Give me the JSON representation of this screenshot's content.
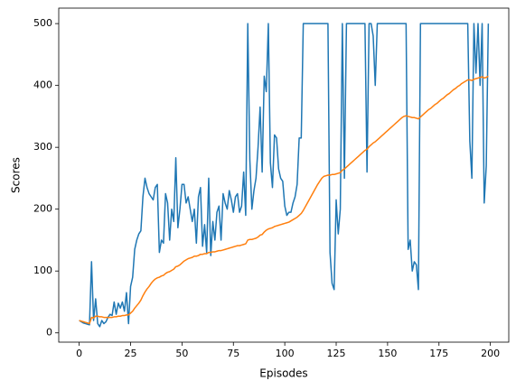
{
  "chart_data": {
    "type": "line",
    "xlabel": "Episodes",
    "ylabel": "Scores",
    "x": [
      0,
      1,
      2,
      3,
      4,
      5,
      6,
      7,
      8,
      9,
      10,
      11,
      12,
      13,
      14,
      15,
      16,
      17,
      18,
      19,
      20,
      21,
      22,
      23,
      24,
      25,
      26,
      27,
      28,
      29,
      30,
      31,
      32,
      33,
      34,
      35,
      36,
      37,
      38,
      39,
      40,
      41,
      42,
      43,
      44,
      45,
      46,
      47,
      48,
      49,
      50,
      51,
      52,
      53,
      54,
      55,
      56,
      57,
      58,
      59,
      60,
      61,
      62,
      63,
      64,
      65,
      66,
      67,
      68,
      69,
      70,
      71,
      72,
      73,
      74,
      75,
      76,
      77,
      78,
      79,
      80,
      81,
      82,
      83,
      84,
      85,
      86,
      87,
      88,
      89,
      90,
      91,
      92,
      93,
      94,
      95,
      96,
      97,
      98,
      99,
      100,
      101,
      102,
      103,
      104,
      105,
      106,
      107,
      108,
      109,
      110,
      111,
      112,
      113,
      114,
      115,
      116,
      117,
      118,
      119,
      120,
      121,
      122,
      123,
      124,
      125,
      126,
      127,
      128,
      129,
      130,
      131,
      132,
      133,
      134,
      135,
      136,
      137,
      138,
      139,
      140,
      141,
      142,
      143,
      144,
      145,
      146,
      147,
      148,
      149,
      150,
      151,
      152,
      153,
      154,
      155,
      156,
      157,
      158,
      159,
      160,
      161,
      162,
      163,
      164,
      165,
      166,
      167,
      168,
      169,
      170,
      171,
      172,
      173,
      174,
      175,
      176,
      177,
      178,
      179,
      180,
      181,
      182,
      183,
      184,
      185,
      186,
      187,
      188,
      189,
      190,
      191,
      192,
      193,
      194,
      195,
      196,
      197,
      198,
      199
    ],
    "series": [
      {
        "color": "#1f77b4",
        "values": [
          20,
          18,
          16,
          15,
          14,
          13,
          115,
          20,
          55,
          15,
          10,
          20,
          15,
          18,
          25,
          30,
          28,
          50,
          30,
          48,
          40,
          50,
          35,
          65,
          15,
          75,
          90,
          135,
          150,
          160,
          165,
          220,
          250,
          235,
          225,
          220,
          215,
          235,
          240,
          130,
          150,
          145,
          225,
          210,
          150,
          200,
          180,
          283,
          170,
          200,
          240,
          240,
          210,
          220,
          200,
          180,
          200,
          145,
          220,
          235,
          140,
          175,
          130,
          250,
          125,
          180,
          150,
          195,
          205,
          150,
          225,
          210,
          200,
          230,
          215,
          195,
          220,
          225,
          195,
          205,
          260,
          190,
          500,
          280,
          200,
          230,
          250,
          300,
          365,
          260,
          415,
          390,
          500,
          275,
          235,
          320,
          315,
          265,
          250,
          245,
          205,
          190,
          195,
          195,
          210,
          220,
          240,
          315,
          315,
          500,
          500,
          500,
          500,
          500,
          500,
          500,
          500,
          500,
          500,
          500,
          500,
          500,
          130,
          80,
          70,
          215,
          160,
          200,
          500,
          250,
          500,
          500,
          500,
          500,
          500,
          500,
          500,
          500,
          500,
          500,
          260,
          500,
          500,
          480,
          400,
          500,
          500,
          500,
          500,
          500,
          500,
          500,
          500,
          500,
          500,
          500,
          500,
          500,
          500,
          500,
          135,
          150,
          100,
          115,
          110,
          70,
          500,
          500,
          500,
          500,
          500,
          500,
          500,
          500,
          500,
          500,
          500,
          500,
          500,
          500,
          500,
          500,
          500,
          500,
          500,
          500,
          500,
          500,
          500,
          500,
          310,
          250,
          500,
          420,
          500,
          400,
          500,
          210,
          270,
          500
        ]
      },
      {
        "color": "#ff7f0e",
        "values": [
          20,
          19,
          18,
          17,
          16,
          15,
          25,
          24,
          27,
          27,
          26,
          26,
          25,
          25,
          25,
          25,
          25,
          26,
          26,
          27,
          27,
          28,
          28,
          29,
          29,
          32,
          35,
          40,
          44,
          48,
          53,
          60,
          66,
          71,
          75,
          80,
          84,
          87,
          89,
          90,
          92,
          93,
          96,
          98,
          99,
          101,
          103,
          107,
          108,
          110,
          113,
          116,
          118,
          120,
          121,
          122,
          124,
          124,
          125,
          127,
          127,
          128,
          128,
          130,
          130,
          131,
          131,
          132,
          133,
          133,
          134,
          135,
          136,
          137,
          138,
          139,
          140,
          141,
          141,
          142,
          143,
          144,
          150,
          151,
          151,
          152,
          153,
          155,
          158,
          159,
          163,
          166,
          168,
          169,
          170,
          172,
          173,
          174,
          175,
          176,
          177,
          178,
          179,
          181,
          183,
          185,
          187,
          190,
          193,
          198,
          204,
          210,
          216,
          222,
          228,
          234,
          240,
          245,
          250,
          253,
          254,
          255,
          255,
          256,
          256,
          257,
          258,
          259,
          263,
          265,
          268,
          271,
          274,
          277,
          280,
          283,
          286,
          289,
          292,
          295,
          297,
          301,
          304,
          307,
          309,
          312,
          315,
          318,
          321,
          324,
          327,
          330,
          333,
          336,
          339,
          342,
          345,
          348,
          350,
          351,
          350,
          349,
          348,
          348,
          347,
          346,
          349,
          352,
          355,
          358,
          361,
          363,
          366,
          369,
          371,
          374,
          377,
          379,
          382,
          385,
          387,
          390,
          393,
          395,
          398,
          400,
          403,
          405,
          407,
          409,
          409,
          408,
          410,
          411,
          412,
          413,
          414,
          412,
          413,
          415
        ]
      }
    ],
    "xlim": [
      -9.95,
      208.95
    ],
    "xticks": [
      0,
      25,
      50,
      75,
      100,
      125,
      150,
      175,
      200
    ],
    "ylim": [
      -15,
      525
    ],
    "yticks": [
      0,
      100,
      200,
      300,
      400,
      500
    ],
    "grid": false
  }
}
